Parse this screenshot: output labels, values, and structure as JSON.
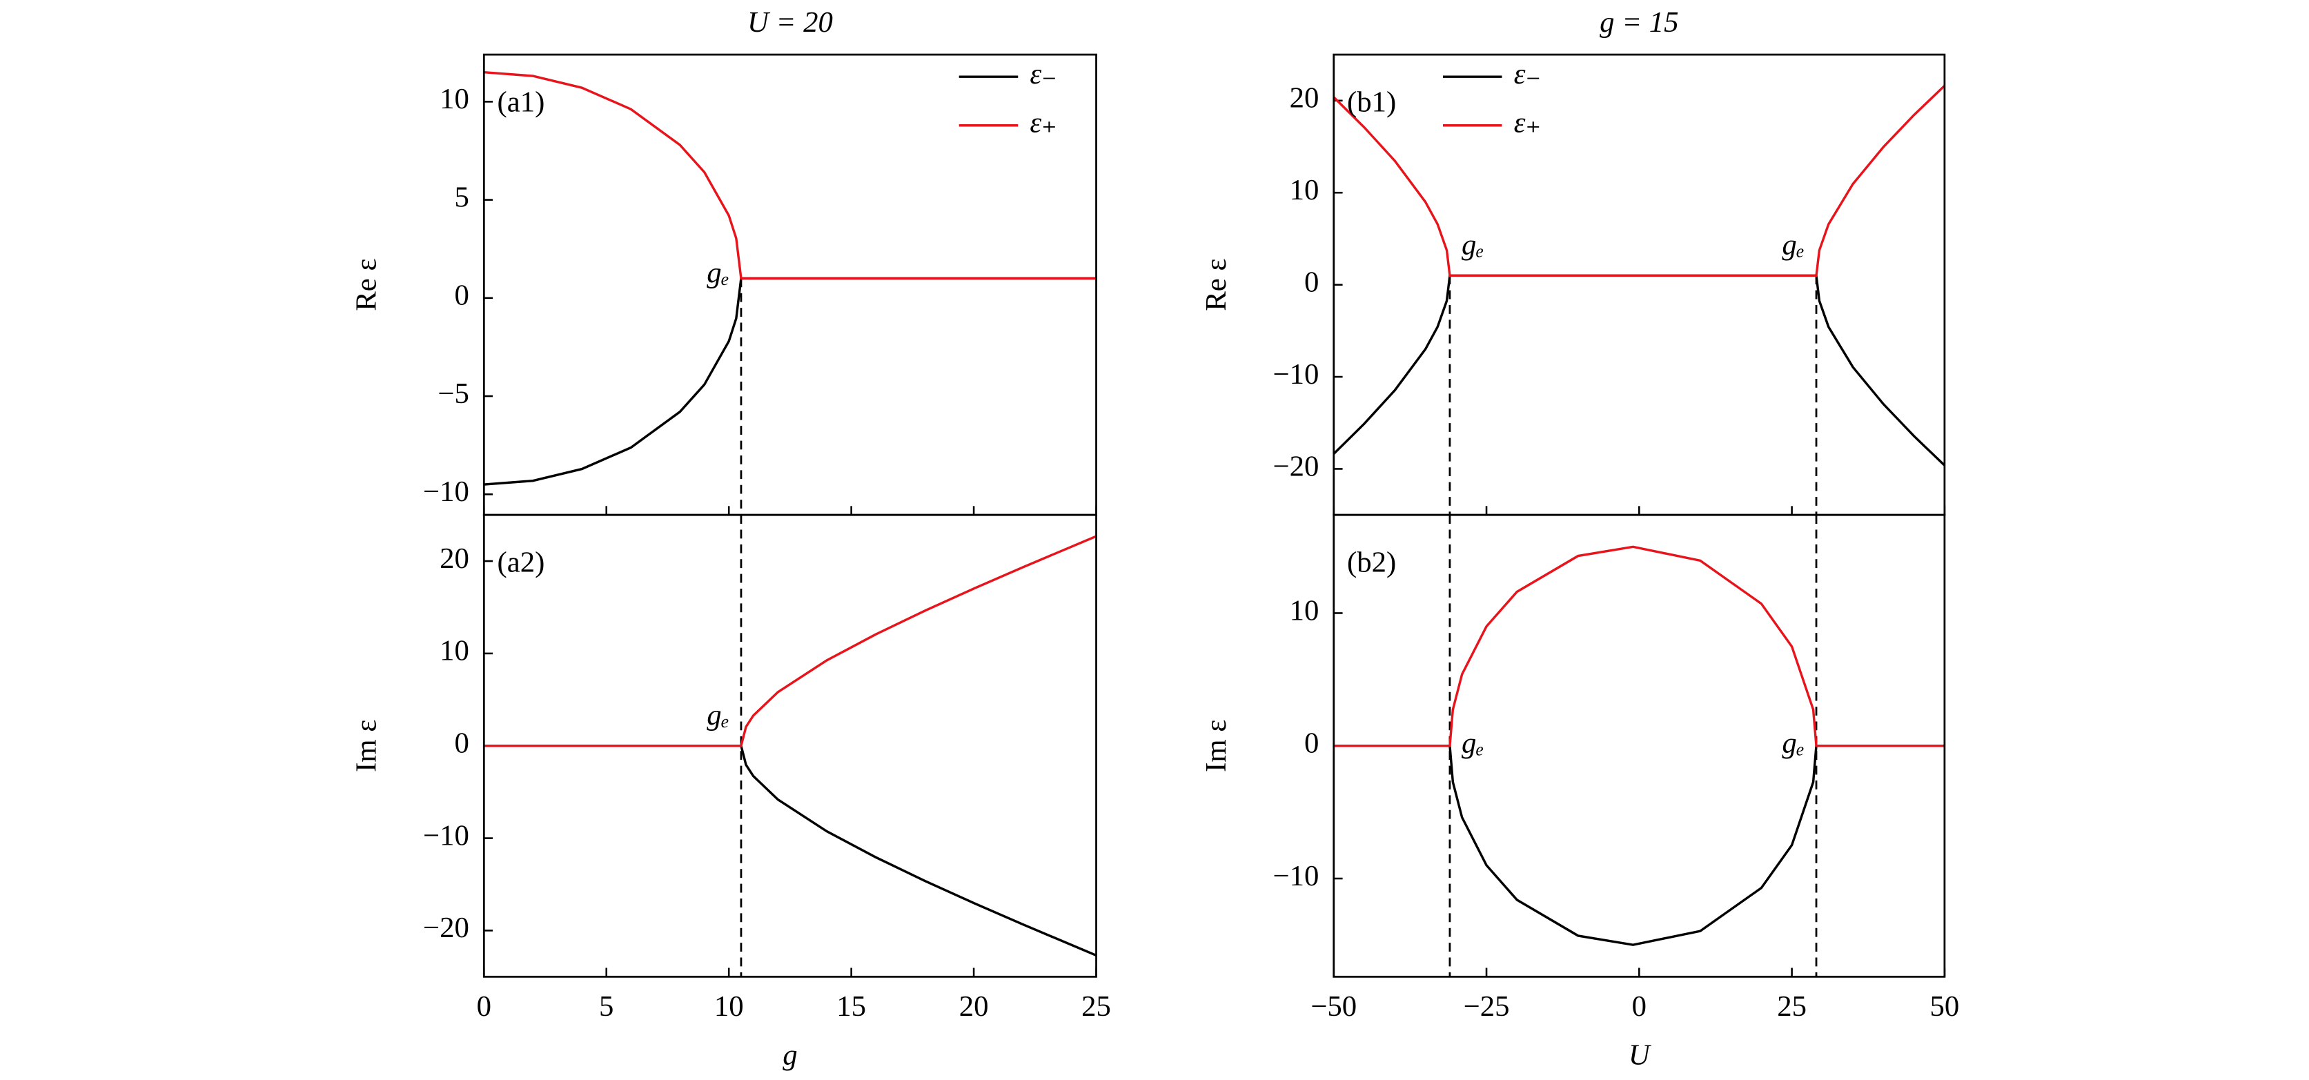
{
  "chart_data": [
    {
      "type": "line",
      "title": "U = 20",
      "panel": "(a1)",
      "ylabel": "Re ε",
      "legend": "upper right",
      "x": [
        0,
        2,
        4,
        6,
        8,
        9,
        10,
        10.3,
        10.5,
        10.7,
        11,
        12,
        14,
        16,
        18,
        20,
        22,
        25
      ],
      "series": [
        {
          "name": "ε₋",
          "color": "#000000",
          "values": [
            -9.5,
            -9.31,
            -8.71,
            -7.62,
            -5.8,
            -4.41,
            -2.2,
            -1.04,
            1,
            1,
            1,
            1,
            1,
            1,
            1,
            1,
            1,
            1
          ]
        },
        {
          "name": "ε₊",
          "color": "#e8141c",
          "values": [
            11.5,
            11.31,
            10.71,
            9.62,
            7.8,
            6.41,
            4.2,
            3.04,
            1,
            1,
            1,
            1,
            1,
            1,
            1,
            1,
            1,
            1
          ]
        }
      ],
      "xlim": [
        0,
        25
      ],
      "ylim": [
        -11.05,
        12.4
      ],
      "yticks": [
        {
          "value": -10,
          "label": "−10"
        },
        {
          "value": -5,
          "label": "−5"
        },
        0,
        5,
        10
      ],
      "vlines": [
        10.5
      ],
      "annotations": [
        "gₑ"
      ]
    },
    {
      "type": "line",
      "panel": "(a2)",
      "ylabel": "Im ε",
      "xlabel": "g",
      "x": [
        0,
        2,
        4,
        6,
        8,
        9,
        10,
        10.3,
        10.5,
        10.7,
        11,
        12,
        14,
        16,
        18,
        20,
        22,
        25
      ],
      "series": [
        {
          "color": "#000000",
          "values": [
            0,
            0,
            0,
            0,
            0,
            0,
            0,
            0,
            0,
            -2.06,
            -3.28,
            -5.81,
            -9.26,
            -12.07,
            -14.62,
            -17.02,
            -19.33,
            -22.69
          ]
        },
        {
          "color": "#e8141c",
          "values": [
            0,
            0,
            0,
            0,
            0,
            0,
            0,
            0,
            0,
            2.06,
            3.28,
            5.81,
            9.26,
            12.07,
            14.62,
            17.02,
            19.33,
            22.69
          ]
        }
      ],
      "xlim": [
        0,
        25
      ],
      "ylim": [
        -25,
        25
      ],
      "xticks": [
        0,
        5,
        10,
        15,
        20,
        25
      ],
      "yticks": [
        {
          "value": -20,
          "label": "−20"
        },
        {
          "value": -10,
          "label": "−10"
        },
        0,
        10,
        20
      ],
      "vlines": [
        10.5
      ],
      "annotations": [
        "gₑ"
      ]
    },
    {
      "type": "line",
      "title": "g = 15",
      "panel": "(b1)",
      "ylabel": "Re ε",
      "legend": "upper left",
      "x": [
        -50,
        -45,
        -40,
        -35,
        -33,
        -31.5,
        -31,
        -30.5,
        -29,
        -25,
        -20,
        -10,
        -1,
        10,
        20,
        25,
        28.5,
        29,
        29.5,
        31,
        35,
        40,
        45,
        50
      ],
      "series": [
        {
          "name": "ε₋",
          "color": "#000000",
          "values": [
            -18.37,
            -15.09,
            -11.46,
            -7,
            -4.57,
            -1.75,
            1,
            1,
            1,
            1,
            1,
            1,
            1,
            1,
            1,
            1,
            1,
            1,
            -1.75,
            -4.57,
            -8.95,
            -12.97,
            -16.44,
            -19.62
          ]
        },
        {
          "name": "ε₊",
          "color": "#e8141c",
          "values": [
            20.37,
            17.09,
            13.46,
            9,
            6.57,
            3.75,
            1,
            1,
            1,
            1,
            1,
            1,
            1,
            1,
            1,
            1,
            1,
            1,
            3.75,
            6.57,
            10.95,
            14.97,
            18.44,
            21.62
          ]
        }
      ],
      "xlim": [
        -50,
        50
      ],
      "ylim": [
        -25,
        25
      ],
      "yticks": [
        {
          "value": -20,
          "label": "−20"
        },
        {
          "value": -10,
          "label": "−10"
        },
        0,
        10,
        20
      ],
      "vlines": [
        -31,
        29
      ],
      "annotations": [
        "gₑ",
        "gₑ"
      ]
    },
    {
      "type": "line",
      "panel": "(b2)",
      "ylabel": "Im ε",
      "xlabel": "U",
      "x": [
        -50,
        -45,
        -40,
        -35,
        -33,
        -31.5,
        -31,
        -30.5,
        -29,
        -25,
        -20,
        -10,
        -1,
        10,
        20,
        25,
        28.5,
        29,
        29.5,
        31,
        35,
        40,
        45,
        50
      ],
      "series": [
        {
          "color": "#000000",
          "values": [
            0,
            0,
            0,
            0,
            0,
            0,
            0,
            -2.73,
            -5.39,
            -9,
            -11.61,
            -14.31,
            -15,
            -13.96,
            -10.71,
            -7.48,
            -2.73,
            0,
            0,
            0,
            0,
            0,
            0,
            0
          ]
        },
        {
          "color": "#e8141c",
          "values": [
            0,
            0,
            0,
            0,
            0,
            0,
            0,
            2.73,
            5.39,
            9,
            11.61,
            14.31,
            15,
            13.96,
            10.71,
            7.48,
            2.73,
            0,
            0,
            0,
            0,
            0,
            0,
            0
          ]
        }
      ],
      "xlim": [
        -50,
        50
      ],
      "ylim": [
        -17.4,
        17.4
      ],
      "xticks": [
        {
          "value": -50,
          "label": "−50"
        },
        {
          "value": -25,
          "label": "−25"
        },
        0,
        25,
        50
      ],
      "yticks": [
        {
          "value": -10,
          "label": "−10"
        },
        0,
        10
      ],
      "vlines": [
        -31,
        29
      ],
      "annotations": [
        "gₑ",
        "gₑ"
      ]
    }
  ]
}
